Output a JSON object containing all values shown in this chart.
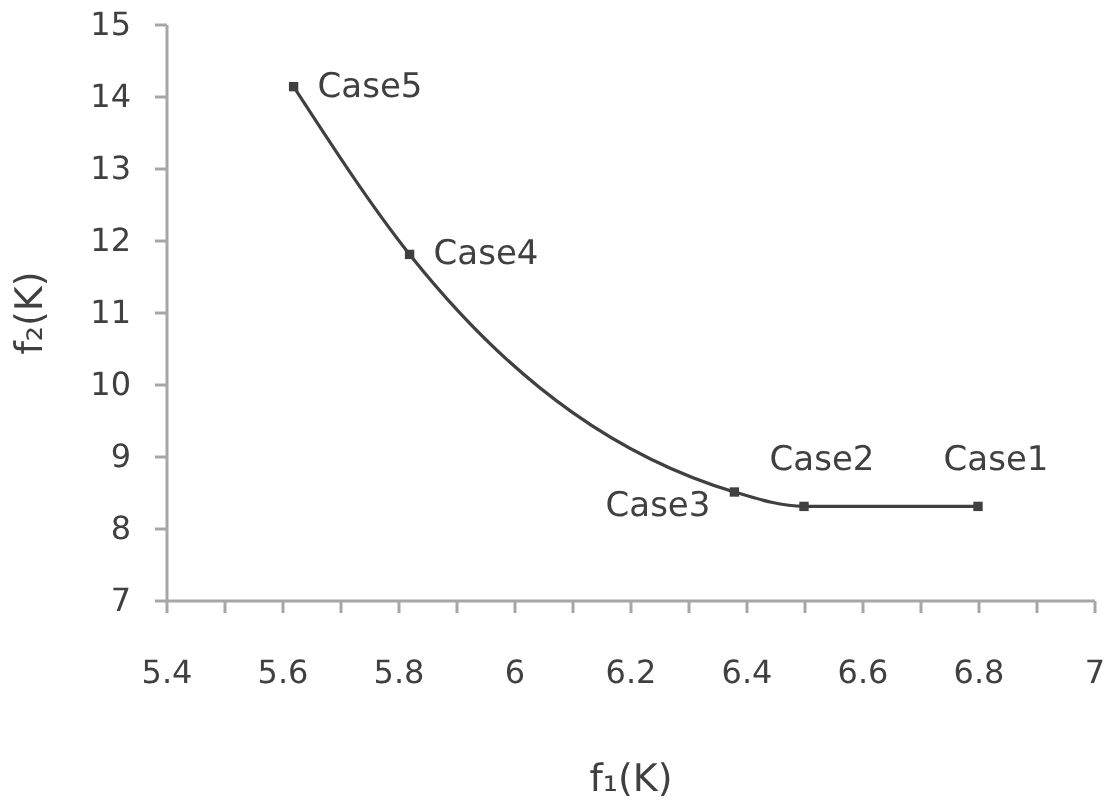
{
  "chart_data": {
    "type": "line",
    "x": [
      5.62,
      5.82,
      6.38,
      6.5,
      6.8
    ],
    "series": [
      {
        "color": "#404040",
        "values": [
          14.13,
          11.8,
          8.5,
          8.3,
          8.3
        ]
      }
    ],
    "xlabel": "f₁(K)",
    "ylabel": "f₂(K)",
    "xlim": [
      5.4,
      7
    ],
    "ylim": [
      7,
      15
    ],
    "xticks": [
      5.4,
      {
        "value": 5.5,
        "label": null
      },
      5.6,
      {
        "value": 5.7,
        "label": null
      },
      5.8,
      {
        "value": 5.9,
        "label": null
      },
      6,
      {
        "value": 6.1,
        "label": null
      },
      6.2,
      {
        "value": 6.3,
        "label": null
      },
      6.4,
      {
        "value": 6.5,
        "label": null
      },
      6.6,
      {
        "value": 6.7,
        "label": null
      },
      6.8,
      {
        "value": 6.9,
        "label": null
      },
      7
    ],
    "yticks": [
      7,
      8,
      9,
      10,
      11,
      12,
      13,
      14,
      15
    ],
    "marker": "square",
    "line_style": "solid",
    "annotations": [
      {
        "text": "Case5",
        "x": 5.62,
        "y": 14.13
      },
      {
        "text": "Case4",
        "x": 5.82,
        "y": 11.8
      },
      {
        "text": "Case3",
        "x": 6.38,
        "y": 8.5
      },
      {
        "text": "Case2",
        "x": 6.5,
        "y": 8.3
      },
      {
        "text": "Case1",
        "x": 6.8,
        "y": 8.3
      }
    ]
  }
}
